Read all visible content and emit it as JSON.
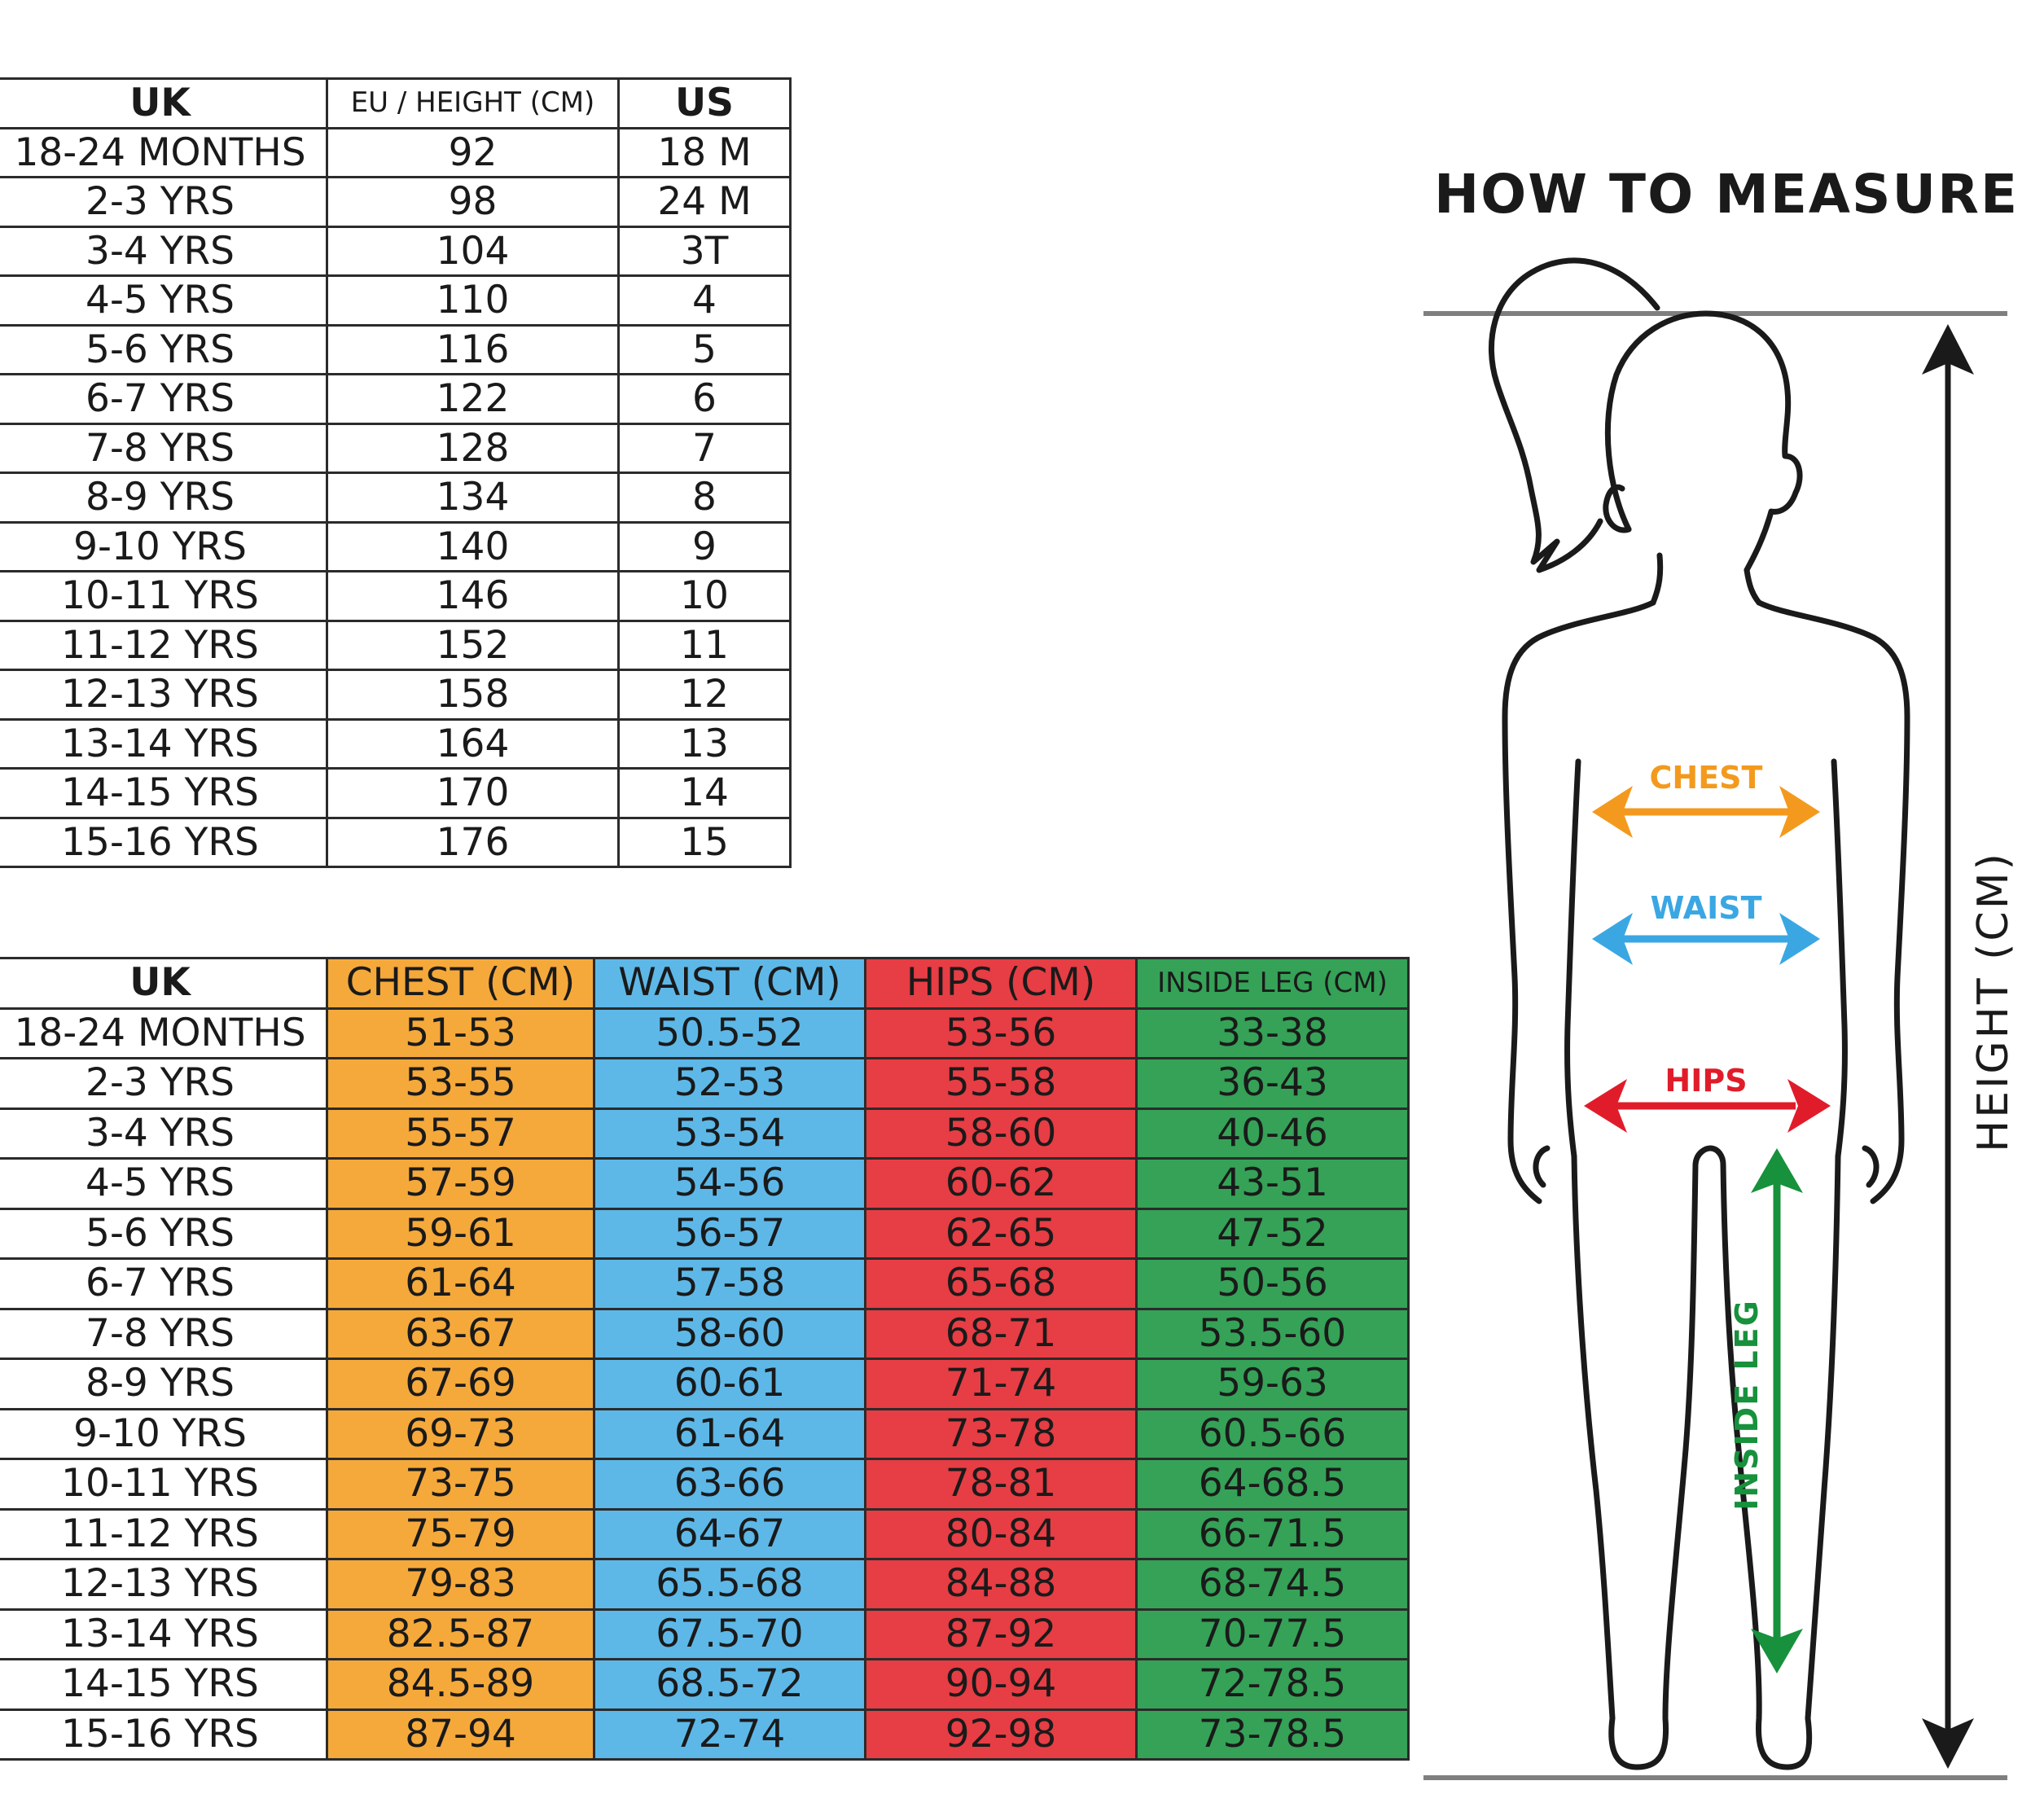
{
  "size_table": {
    "headers": [
      "UK",
      "EU / HEIGHT (CM)",
      "US"
    ],
    "rows": [
      [
        "18-24 MONTHS",
        "92",
        "18 M"
      ],
      [
        "2-3 YRS",
        "98",
        "24 M"
      ],
      [
        "3-4 YRS",
        "104",
        "3T"
      ],
      [
        "4-5 YRS",
        "110",
        "4"
      ],
      [
        "5-6 YRS",
        "116",
        "5"
      ],
      [
        "6-7 YRS",
        "122",
        "6"
      ],
      [
        "7-8 YRS",
        "128",
        "7"
      ],
      [
        "8-9 YRS",
        "134",
        "8"
      ],
      [
        "9-10 YRS",
        "140",
        "9"
      ],
      [
        "10-11 YRS",
        "146",
        "10"
      ],
      [
        "11-12 YRS",
        "152",
        "11"
      ],
      [
        "12-13 YRS",
        "158",
        "12"
      ],
      [
        "13-14 YRS",
        "164",
        "13"
      ],
      [
        "14-15 YRS",
        "170",
        "14"
      ],
      [
        "15-16 YRS",
        "176",
        "15"
      ]
    ]
  },
  "measure_table": {
    "headers": [
      "UK",
      "CHEST (CM)",
      "WAIST (CM)",
      "HIPS (CM)",
      "INSIDE LEG (CM)"
    ],
    "rows": [
      [
        "18-24 MONTHS",
        "51-53",
        "50.5-52",
        "53-56",
        "33-38"
      ],
      [
        "2-3 YRS",
        "53-55",
        "52-53",
        "55-58",
        "36-43"
      ],
      [
        "3-4 YRS",
        "55-57",
        "53-54",
        "58-60",
        "40-46"
      ],
      [
        "4-5 YRS",
        "57-59",
        "54-56",
        "60-62",
        "43-51"
      ],
      [
        "5-6 YRS",
        "59-61",
        "56-57",
        "62-65",
        "47-52"
      ],
      [
        "6-7 YRS",
        "61-64",
        "57-58",
        "65-68",
        "50-56"
      ],
      [
        "7-8 YRS",
        "63-67",
        "58-60",
        "68-71",
        "53.5-60"
      ],
      [
        "8-9 YRS",
        "67-69",
        "60-61",
        "71-74",
        "59-63"
      ],
      [
        "9-10 YRS",
        "69-73",
        "61-64",
        "73-78",
        "60.5-66"
      ],
      [
        "10-11 YRS",
        "73-75",
        "63-66",
        "78-81",
        "64-68.5"
      ],
      [
        "11-12 YRS",
        "75-79",
        "64-67",
        "80-84",
        "66-71.5"
      ],
      [
        "12-13 YRS",
        "79-83",
        "65.5-68",
        "84-88",
        "68-74.5"
      ],
      [
        "13-14 YRS",
        "82.5-87",
        "67.5-70",
        "87-92",
        "70-77.5"
      ],
      [
        "14-15 YRS",
        "84.5-89",
        "68.5-72",
        "90-94",
        "72-78.5"
      ],
      [
        "15-16 YRS",
        "87-94",
        "72-74",
        "92-98",
        "73-78.5"
      ]
    ]
  },
  "how_to_measure": {
    "title": "HOW TO MEASURE",
    "chest_label": "CHEST",
    "waist_label": "WAIST",
    "hips_label": "HIPS",
    "inside_leg_label": "INSIDE LEG",
    "height_label": "HEIGHT (CM)"
  },
  "colors": {
    "chest": "#f5a93a",
    "waist": "#5db8e8",
    "hips": "#e73d44",
    "inside_leg": "#35a257",
    "chest_arrow": "#f39a1e",
    "waist_arrow": "#3aa7e3",
    "hips_arrow": "#e11c2a",
    "leg_arrow": "#17913c"
  },
  "icons": [
    "girl-silhouette-icon",
    "height-arrow-icon"
  ]
}
